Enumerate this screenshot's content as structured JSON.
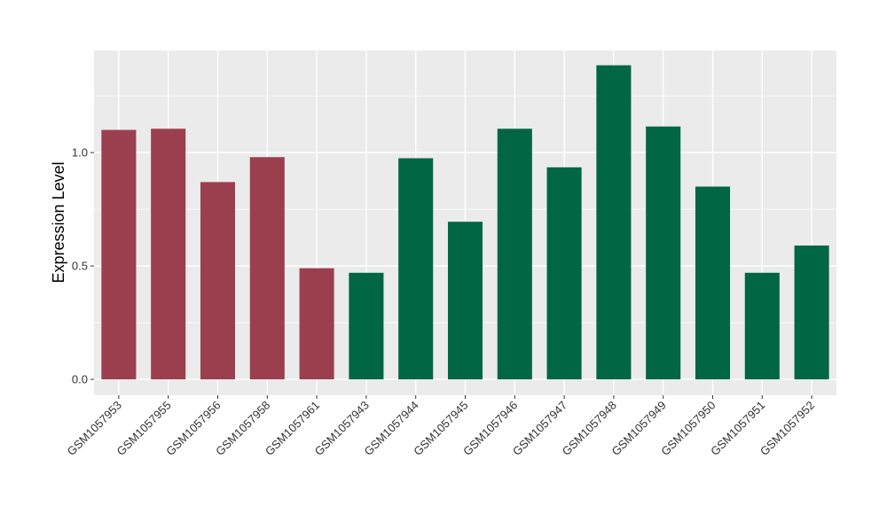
{
  "chart_data": {
    "type": "bar",
    "title": "",
    "xlabel": "",
    "ylabel": "Expression Level",
    "ylim": [
      -0.07,
      1.45
    ],
    "yticks": [
      0.0,
      0.5,
      1.0
    ],
    "ytick_labels": [
      "0.0",
      "0.5",
      "1.0"
    ],
    "grid": true,
    "legend": "none",
    "categories": [
      "GSM1057953",
      "GSM1057955",
      "GSM1057956",
      "GSM1057958",
      "GSM1057961",
      "GSM1057943",
      "GSM1057944",
      "GSM1057945",
      "GSM1057946",
      "GSM1057947",
      "GSM1057948",
      "GSM1057949",
      "GSM1057950",
      "GSM1057951",
      "GSM1057952"
    ],
    "values": [
      1.1,
      1.105,
      0.87,
      0.98,
      0.49,
      0.47,
      0.975,
      0.695,
      1.105,
      0.935,
      1.385,
      1.115,
      0.85,
      0.47,
      0.59
    ],
    "groups": [
      0,
      0,
      0,
      0,
      0,
      1,
      1,
      1,
      1,
      1,
      1,
      1,
      1,
      1,
      1
    ],
    "group_colors": [
      "#9b3f4f",
      "#006644"
    ],
    "panel_color": "#ebebeb",
    "grid_color": "#ffffff"
  }
}
